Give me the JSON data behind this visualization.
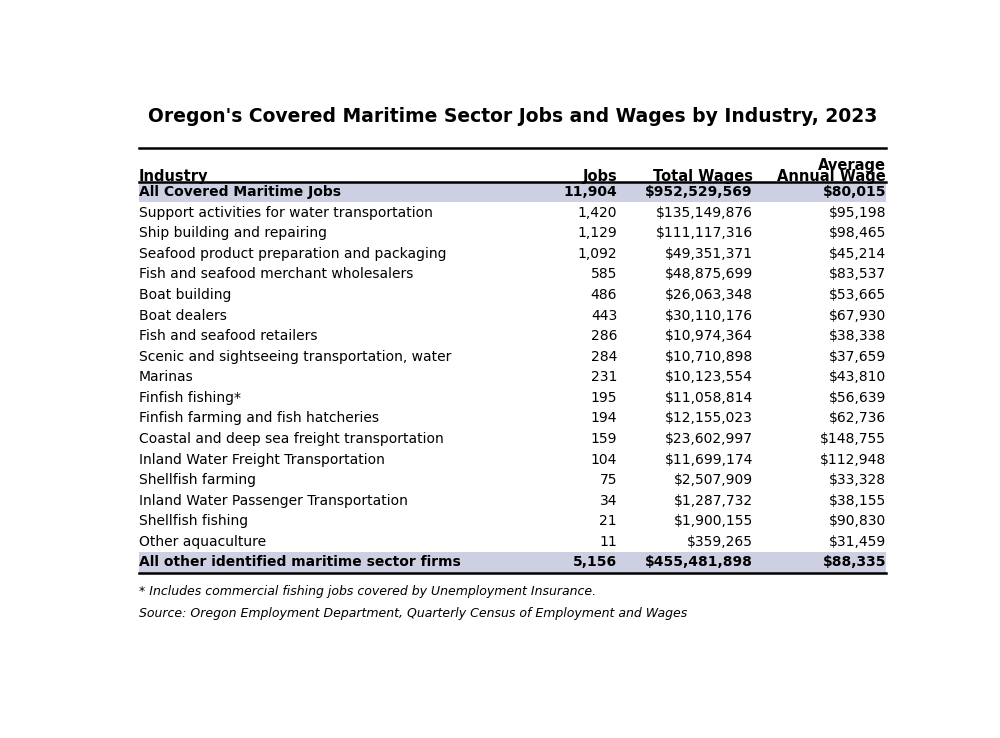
{
  "title": "Oregon's Covered Maritime Sector Jobs and Wages by Industry, 2023",
  "rows": [
    [
      "All Covered Maritime Jobs",
      "11,904",
      "$952,529,569",
      "$80,015",
      true
    ],
    [
      "Support activities for water transportation",
      "1,420",
      "$135,149,876",
      "$95,198",
      false
    ],
    [
      "Ship building and repairing",
      "1,129",
      "$111,117,316",
      "$98,465",
      false
    ],
    [
      "Seafood product preparation and packaging",
      "1,092",
      "$49,351,371",
      "$45,214",
      false
    ],
    [
      "Fish and seafood merchant wholesalers",
      "585",
      "$48,875,699",
      "$83,537",
      false
    ],
    [
      "Boat building",
      "486",
      "$26,063,348",
      "$53,665",
      false
    ],
    [
      "Boat dealers",
      "443",
      "$30,110,176",
      "$67,930",
      false
    ],
    [
      "Fish and seafood retailers",
      "286",
      "$10,974,364",
      "$38,338",
      false
    ],
    [
      "Scenic and sightseeing transportation, water",
      "284",
      "$10,710,898",
      "$37,659",
      false
    ],
    [
      "Marinas",
      "231",
      "$10,123,554",
      "$43,810",
      false
    ],
    [
      "Finfish fishing*",
      "195",
      "$11,058,814",
      "$56,639",
      false
    ],
    [
      "Finfish farming and fish hatcheries",
      "194",
      "$12,155,023",
      "$62,736",
      false
    ],
    [
      "Coastal and deep sea freight transportation",
      "159",
      "$23,602,997",
      "$148,755",
      false
    ],
    [
      "Inland Water Freight Transportation",
      "104",
      "$11,699,174",
      "$112,948",
      false
    ],
    [
      "Shellfish farming",
      "75",
      "$2,507,909",
      "$33,328",
      false
    ],
    [
      "Inland Water Passenger Transportation",
      "34",
      "$1,287,732",
      "$38,155",
      false
    ],
    [
      "Shellfish fishing",
      "21",
      "$1,900,155",
      "$90,830",
      false
    ],
    [
      "Other aquaculture",
      "11",
      "$359,265",
      "$31,459",
      false
    ],
    [
      "All other identified maritime sector firms",
      "5,156",
      "$455,481,898",
      "$88,335",
      true
    ]
  ],
  "footnote1": "* Includes commercial fishing jobs covered by Unemployment Insurance.",
  "footnote2": "Source: Oregon Employment Department, Quarterly Census of Employment and Wages",
  "bg_color": "#ffffff",
  "shade_color": "#cdd0e3",
  "title_fontsize": 13.5,
  "header_fontsize": 10.5,
  "row_fontsize": 10,
  "footnote_fontsize": 9
}
